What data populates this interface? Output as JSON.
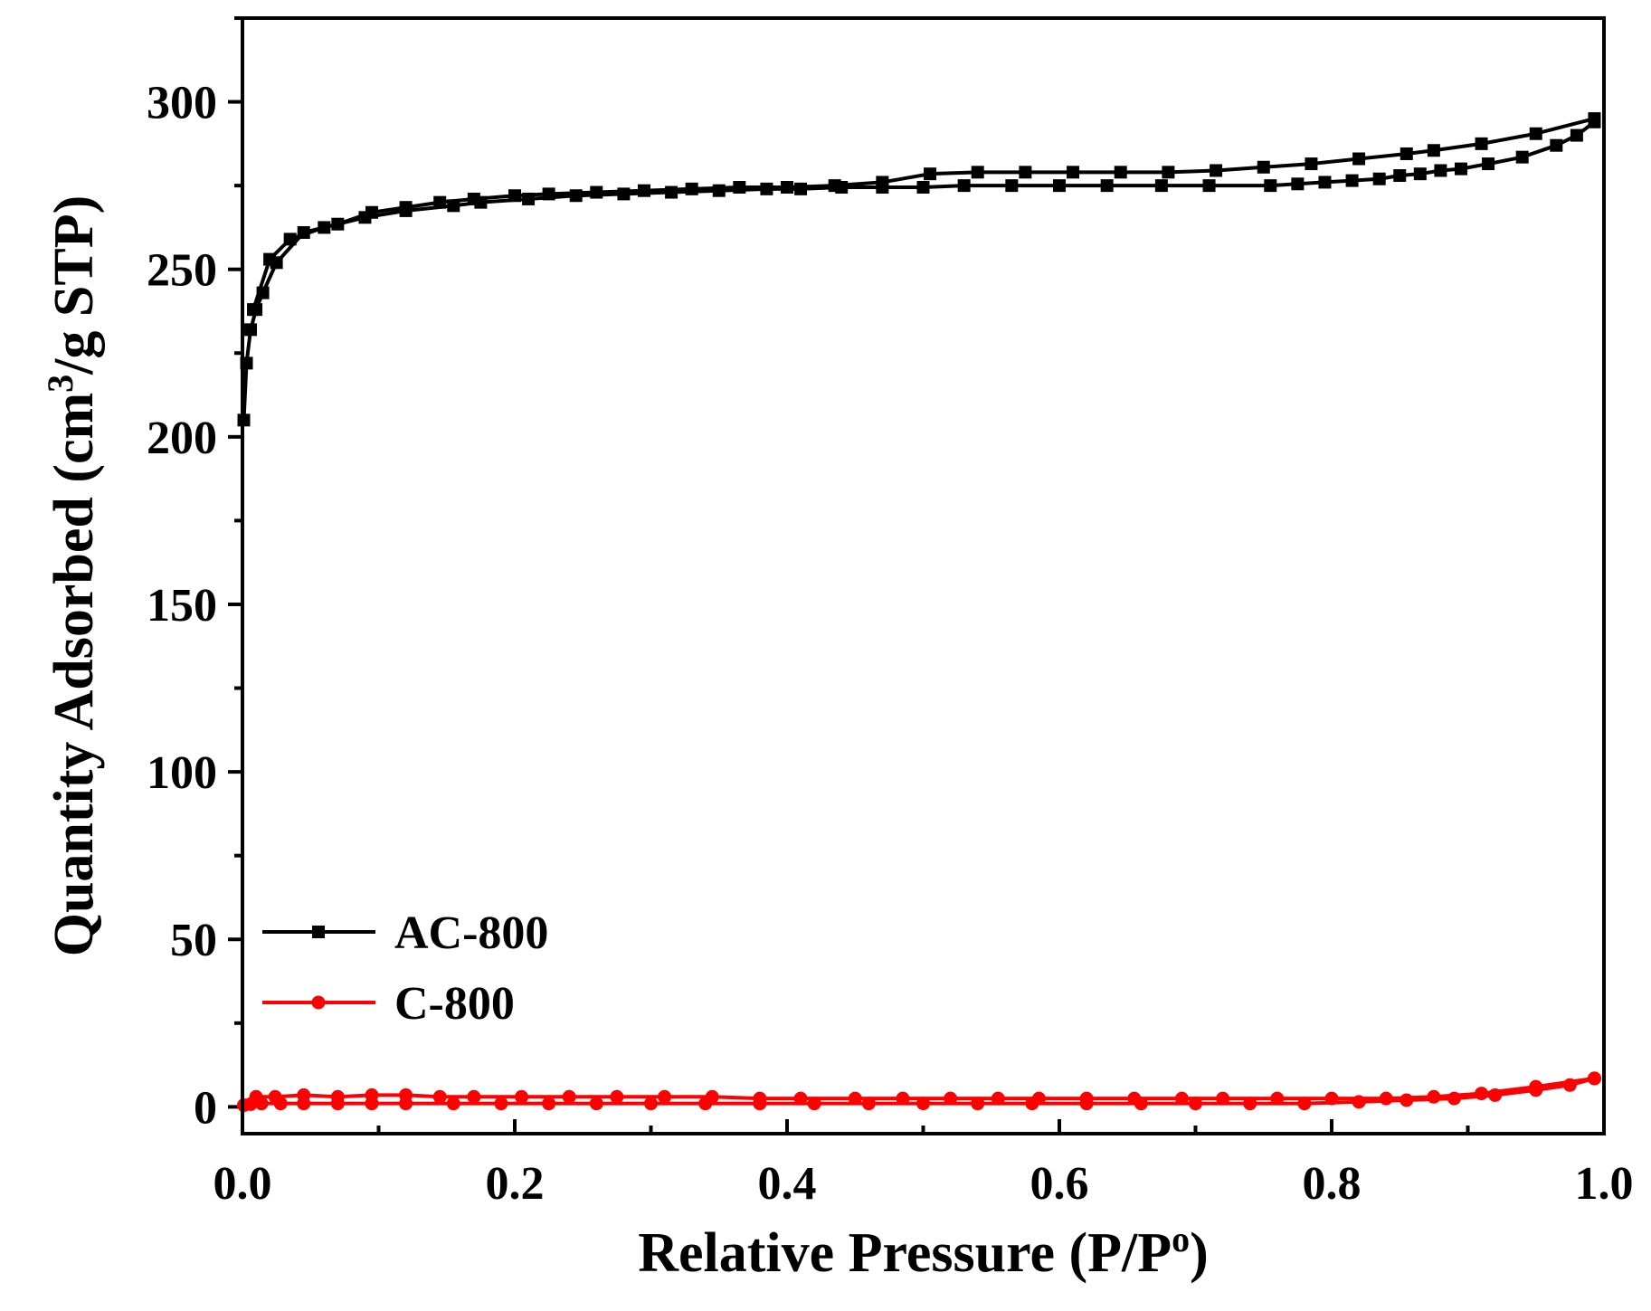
{
  "chart_data": {
    "type": "line",
    "title": "",
    "xlabel": "Relative Pressure (P/P",
    "xlabel_sup": "o",
    "xlabel_end": ")",
    "ylabel": "Quantity Adsorbed (cm",
    "ylabel_sup": "3",
    "ylabel_end": "/g STP)",
    "xlim": [
      0.0,
      1.0
    ],
    "ylim": [
      -8,
      325
    ],
    "xticks": [
      0.0,
      0.2,
      0.4,
      0.6,
      0.8,
      1.0
    ],
    "xtick_labels": [
      "0.0",
      "0.2",
      "0.4",
      "0.6",
      "0.8",
      "1.0"
    ],
    "yticks": [
      0,
      50,
      100,
      150,
      200,
      250,
      300
    ],
    "ytick_labels": [
      "0",
      "50",
      "100",
      "150",
      "200",
      "250",
      "300"
    ],
    "legend_position": "bottom-left",
    "series": [
      {
        "name": "AC-800",
        "color": "#000000",
        "marker": "square",
        "adsorption": {
          "x": [
            0.001,
            0.003,
            0.006,
            0.01,
            0.015,
            0.025,
            0.045,
            0.07,
            0.095,
            0.12,
            0.145,
            0.17,
            0.2,
            0.225,
            0.26,
            0.295,
            0.33,
            0.365,
            0.4,
            0.435,
            0.47,
            0.505,
            0.54,
            0.575,
            0.61,
            0.645,
            0.68,
            0.715,
            0.75,
            0.785,
            0.82,
            0.855,
            0.875,
            0.91,
            0.95,
            0.993
          ],
          "y": [
            205,
            222,
            232,
            238,
            243,
            252,
            261,
            263.5,
            267,
            268.5,
            270,
            271,
            272,
            272.5,
            273,
            273.5,
            274,
            274.5,
            274.5,
            275,
            276,
            278.5,
            279,
            279,
            279,
            279,
            279,
            279.5,
            280.5,
            281.5,
            283,
            284.5,
            285.5,
            287.5,
            290.5,
            295
          ]
        },
        "desorption": {
          "x": [
            0.993,
            0.98,
            0.965,
            0.94,
            0.915,
            0.895,
            0.88,
            0.865,
            0.85,
            0.835,
            0.815,
            0.795,
            0.775,
            0.755,
            0.71,
            0.675,
            0.635,
            0.6,
            0.565,
            0.53,
            0.5,
            0.47,
            0.44,
            0.41,
            0.385,
            0.35,
            0.315,
            0.28,
            0.245,
            0.21,
            0.175,
            0.155,
            0.12,
            0.09,
            0.06,
            0.035,
            0.02,
            0.008
          ],
          "y": [
            294,
            290,
            287,
            283.5,
            281.5,
            280,
            279.5,
            278.5,
            278,
            277,
            276.5,
            276,
            275.5,
            275,
            275,
            275,
            275,
            275,
            275,
            275,
            274.5,
            274.5,
            274.5,
            274,
            274,
            273.5,
            273,
            272.5,
            272,
            271,
            270,
            269,
            267.5,
            265.5,
            262.5,
            259,
            253,
            238
          ]
        }
      },
      {
        "name": "C-800",
        "color": "#ff0000",
        "marker": "circle",
        "adsorption": {
          "x": [
            0.001,
            0.006,
            0.014,
            0.028,
            0.045,
            0.07,
            0.095,
            0.12,
            0.155,
            0.19,
            0.225,
            0.26,
            0.3,
            0.34,
            0.38,
            0.42,
            0.46,
            0.5,
            0.54,
            0.58,
            0.62,
            0.66,
            0.7,
            0.74,
            0.78,
            0.82,
            0.855,
            0.89,
            0.92,
            0.95,
            0.975,
            0.993
          ],
          "y": [
            0.5,
            0.8,
            1,
            1,
            1,
            1,
            1,
            1,
            1,
            1,
            1,
            1,
            1,
            1,
            1,
            1,
            1,
            1,
            1,
            1,
            1,
            1,
            1,
            1,
            1,
            1.5,
            2,
            2.5,
            3.5,
            5,
            6.5,
            8.5
          ]
        },
        "desorption": {
          "x": [
            0.993,
            0.95,
            0.91,
            0.875,
            0.84,
            0.8,
            0.76,
            0.72,
            0.69,
            0.655,
            0.62,
            0.585,
            0.555,
            0.52,
            0.485,
            0.45,
            0.41,
            0.38,
            0.345,
            0.31,
            0.275,
            0.24,
            0.205,
            0.17,
            0.145,
            0.12,
            0.095,
            0.07,
            0.045,
            0.024,
            0.01
          ],
          "y": [
            8.5,
            6,
            4,
            3,
            2.5,
            2.5,
            2.5,
            2.5,
            2.5,
            2.5,
            2.5,
            2.5,
            2.5,
            2.5,
            2.5,
            2.5,
            2.5,
            2.5,
            3,
            3,
            3,
            3,
            3,
            3,
            3,
            3.5,
            3.5,
            3,
            3.5,
            3,
            3
          ]
        }
      }
    ]
  }
}
